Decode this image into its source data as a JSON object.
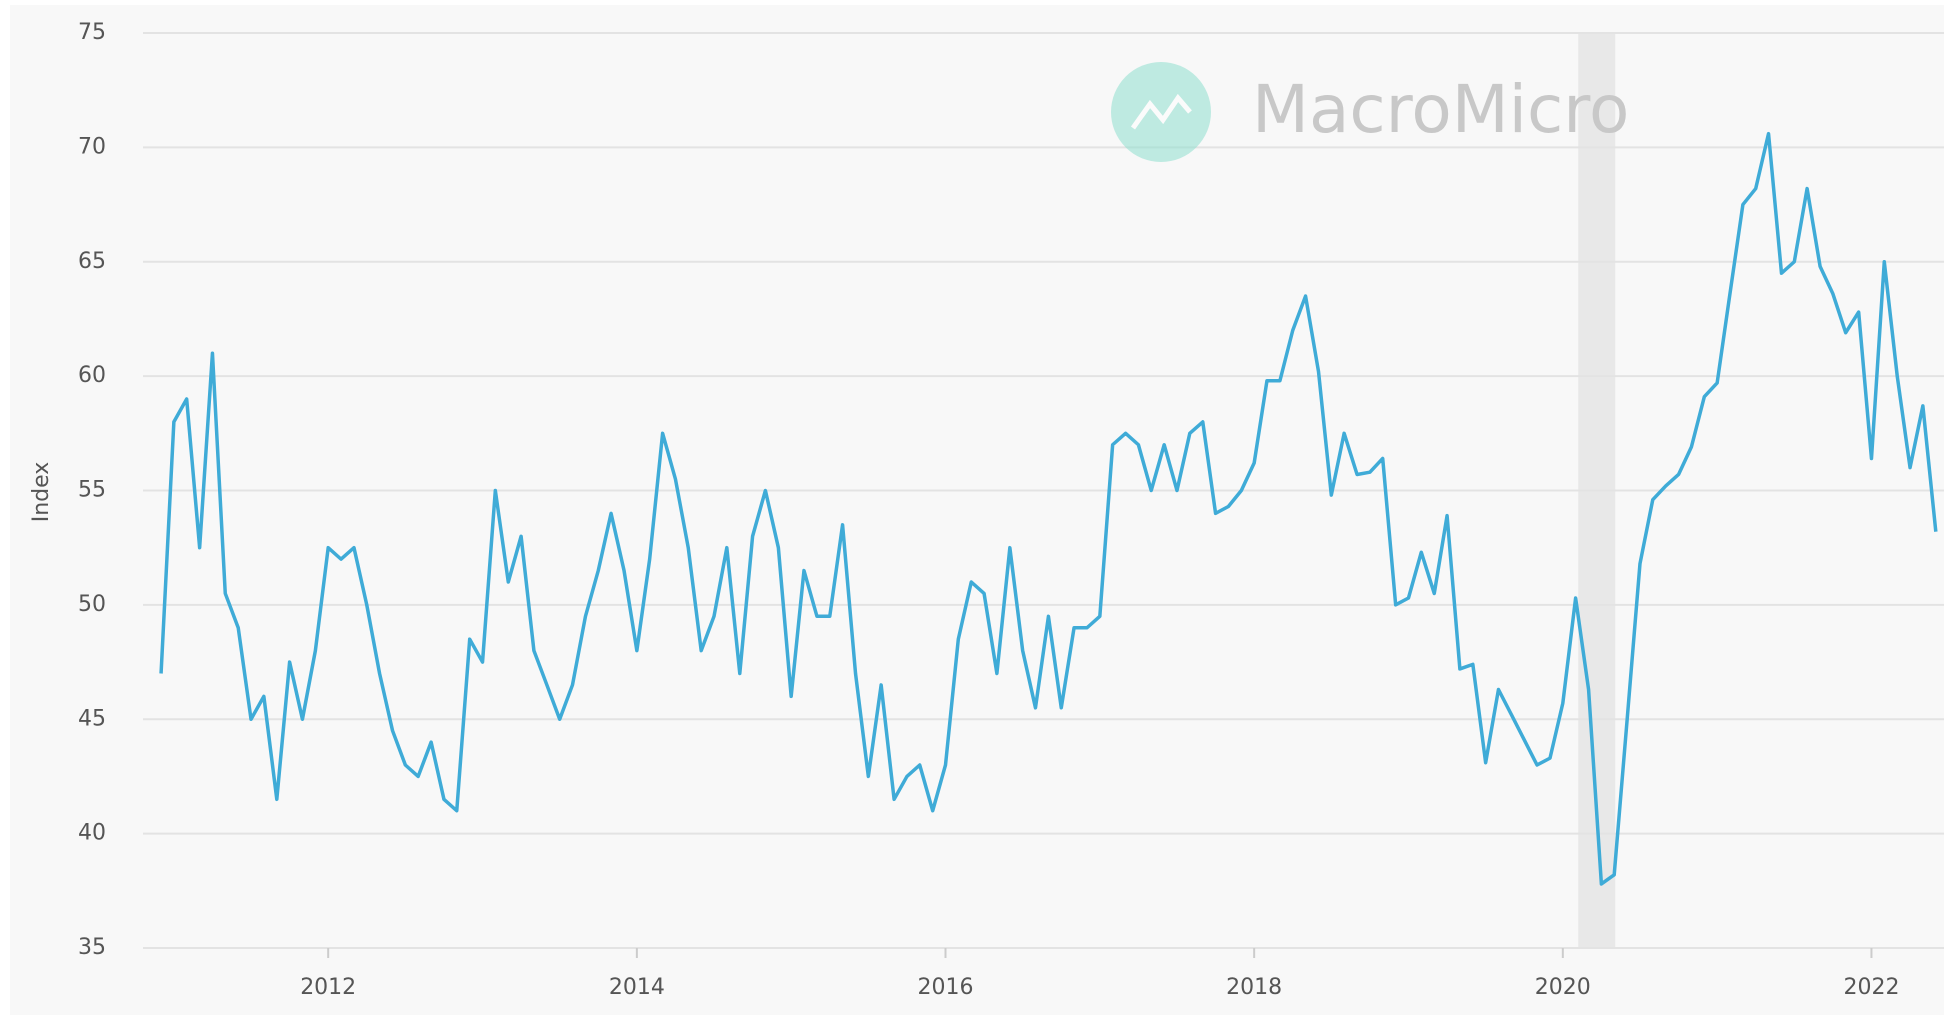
{
  "chart_data": {
    "type": "line",
    "y_label": "Index",
    "watermark": "MacroMicro",
    "x": [
      2010.917,
      2011,
      2011.083,
      2011.167,
      2011.25,
      2011.333,
      2011.417,
      2011.5,
      2011.583,
      2011.667,
      2011.75,
      2011.833,
      2011.917,
      2012,
      2012.083,
      2012.167,
      2012.25,
      2012.333,
      2012.417,
      2012.5,
      2012.583,
      2012.667,
      2012.75,
      2012.833,
      2012.917,
      2013,
      2013.083,
      2013.167,
      2013.25,
      2013.333,
      2013.417,
      2013.5,
      2013.583,
      2013.667,
      2013.75,
      2013.833,
      2013.917,
      2014,
      2014.083,
      2014.167,
      2014.25,
      2014.333,
      2014.417,
      2014.5,
      2014.583,
      2014.667,
      2014.75,
      2014.833,
      2014.917,
      2015,
      2015.083,
      2015.167,
      2015.25,
      2015.333,
      2015.417,
      2015.5,
      2015.583,
      2015.667,
      2015.75,
      2015.833,
      2015.917,
      2016,
      2016.083,
      2016.167,
      2016.25,
      2016.333,
      2016.417,
      2016.5,
      2016.583,
      2016.667,
      2016.75,
      2016.833,
      2016.917,
      2017,
      2017.083,
      2017.167,
      2017.25,
      2017.333,
      2017.417,
      2017.5,
      2017.583,
      2017.667,
      2017.75,
      2017.833,
      2017.917,
      2018,
      2018.083,
      2018.167,
      2018.25,
      2018.333,
      2018.417,
      2018.5,
      2018.583,
      2018.667,
      2018.75,
      2018.833,
      2018.917,
      2019,
      2019.083,
      2019.167,
      2019.25,
      2019.333,
      2019.417,
      2019.5,
      2019.583,
      2019.667,
      2019.75,
      2019.833,
      2019.917,
      2020,
      2020.083,
      2020.167,
      2020.25,
      2020.333,
      2020.417,
      2020.5,
      2020.583,
      2020.667,
      2020.75,
      2020.833,
      2020.917,
      2021,
      2021.083,
      2021.167,
      2021.25,
      2021.333,
      2021.417,
      2021.5,
      2021.583,
      2021.667,
      2021.75,
      2021.833,
      2021.917,
      2022,
      2022.083,
      2022.167,
      2022.25,
      2022.333,
      2022.417
    ],
    "series": [
      {
        "color": "#3fabd7",
        "values": [
          47,
          58,
          59,
          52.5,
          61,
          50.5,
          49,
          45,
          46,
          41.5,
          47.5,
          45,
          48,
          52.5,
          52,
          52.5,
          50,
          47,
          44.5,
          43,
          42.5,
          44,
          41.5,
          41,
          48.5,
          47.5,
          55,
          51,
          53,
          48,
          46.5,
          45,
          46.5,
          49.5,
          51.5,
          54,
          51.5,
          48,
          52,
          57.5,
          55.5,
          52.5,
          48,
          49.5,
          52.5,
          47,
          53,
          55,
          52.5,
          46,
          51.5,
          49.5,
          49.5,
          53.5,
          47,
          42.5,
          46.5,
          41.5,
          42.5,
          43,
          41,
          43,
          48.5,
          51,
          50.5,
          47,
          52.5,
          48,
          45.5,
          49.5,
          45.5,
          49,
          49,
          49.5,
          57,
          57.5,
          57,
          55,
          57,
          55,
          57.5,
          58,
          54,
          54.3,
          55,
          56.2,
          59.8,
          59.8,
          62,
          63.5,
          60.2,
          54.8,
          57.5,
          55.7,
          55.8,
          56.4,
          50,
          50.3,
          52.3,
          50.5,
          53.9,
          47.2,
          47.4,
          43.1,
          46.3,
          45.2,
          44.1,
          43,
          43.3,
          45.7,
          50.3,
          46.3,
          37.8,
          38.2,
          45,
          51.8,
          54.6,
          55.2,
          55.7,
          56.9,
          59.1,
          59.7,
          63.6,
          67.5,
          68.2,
          70.6,
          64.5,
          65,
          68.2,
          64.8,
          63.6,
          61.9,
          62.8,
          56.4,
          65,
          60,
          56,
          58.7,
          53.2
        ]
      }
    ],
    "xlim": [
      2010.8,
      2022.47
    ],
    "xticks": [
      2012,
      2014,
      2016,
      2018,
      2020,
      2022
    ],
    "ylim": [
      35,
      75
    ],
    "yticks": [
      35,
      40,
      45,
      50,
      55,
      60,
      65,
      70,
      75
    ],
    "grid": true,
    "shaded_range": [
      2020.1,
      2020.34
    ]
  }
}
